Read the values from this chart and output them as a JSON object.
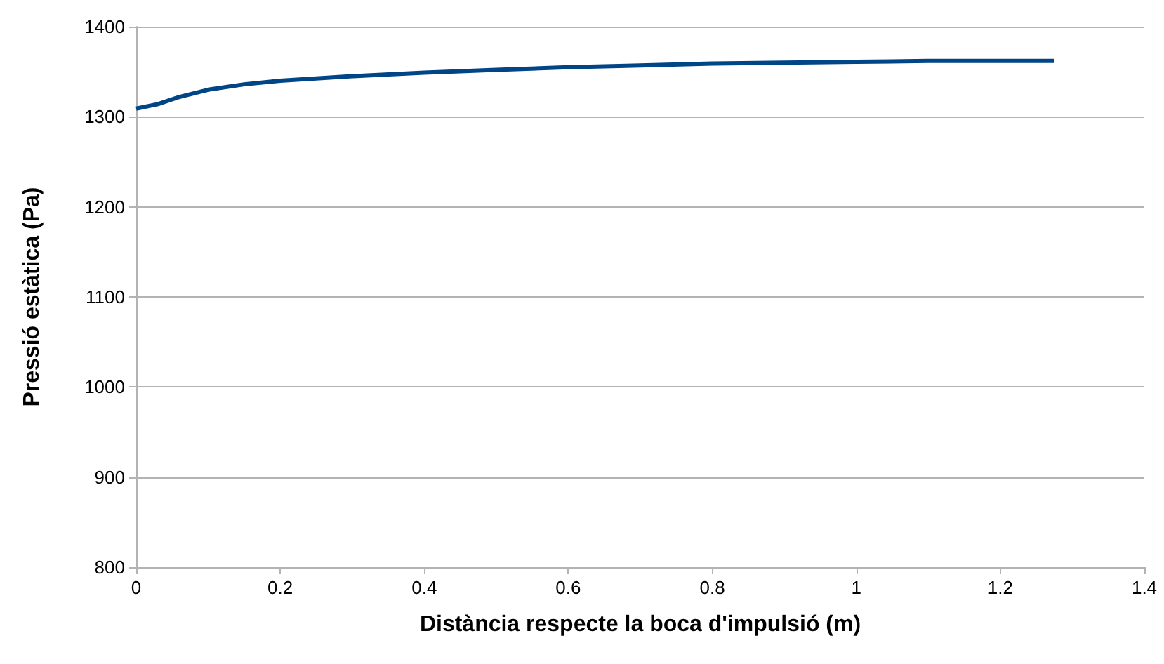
{
  "chart_data": {
    "type": "line",
    "xlabel": "Distància respecte la boca d'impulsió (m)",
    "ylabel": "Pressió estàtica (Pa)",
    "series": [
      {
        "color": "#004586",
        "x": [
          0,
          0.03,
          0.06,
          0.1,
          0.15,
          0.2,
          0.3,
          0.4,
          0.5,
          0.6,
          0.7,
          0.8,
          0.9,
          1.0,
          1.1,
          1.275
        ],
        "values": [
          1309,
          1314,
          1322,
          1330,
          1336,
          1340,
          1345,
          1349,
          1352,
          1355,
          1357,
          1359,
          1360,
          1361,
          1362,
          1362
        ]
      }
    ],
    "xlim": [
      0,
      1.4
    ],
    "xticks": [
      0,
      0.2,
      0.4,
      0.6,
      0.8,
      1,
      1.2,
      1.4
    ],
    "ylim": [
      800,
      1400
    ],
    "yticks": [
      800,
      900,
      1000,
      1100,
      1200,
      1300,
      1400
    ],
    "grid": "y",
    "marker": "none",
    "line_style": "solid"
  }
}
